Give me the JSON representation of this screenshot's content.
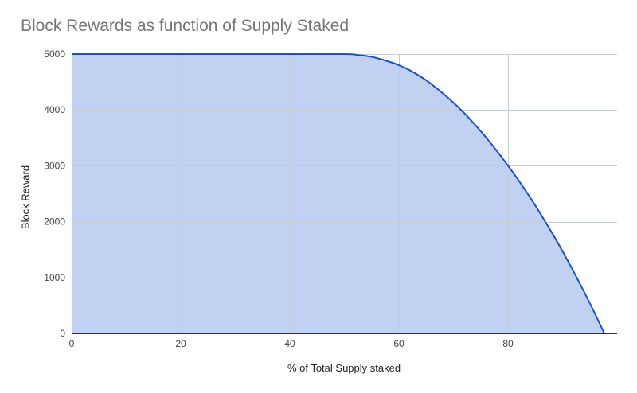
{
  "chart_data": {
    "type": "area",
    "title": "Block Rewards as function of Supply Staked",
    "xlabel": "% of Total Supply staked",
    "ylabel": "Block Reward",
    "xlim": [
      0,
      100
    ],
    "ylim": [
      0,
      5000
    ],
    "x_ticks": [
      "0",
      "20",
      "40",
      "60",
      "80"
    ],
    "y_ticks": [
      "0",
      "1000",
      "2000",
      "3000",
      "4000",
      "5000"
    ],
    "grid": true,
    "legend": "none",
    "series": [
      {
        "x": [
          0,
          10,
          20,
          30,
          40,
          50,
          52,
          55,
          58,
          60,
          62,
          65,
          68,
          70,
          72,
          75,
          78,
          80,
          82,
          85,
          88,
          90,
          92,
          95,
          98,
          100
        ],
        "values": [
          5000,
          5000,
          5000,
          5000,
          5000,
          5000,
          4990,
          4950,
          4870,
          4800,
          4710,
          4530,
          4300,
          4130,
          3940,
          3620,
          3260,
          3000,
          2730,
          2290,
          1810,
          1470,
          1110,
          540,
          -70,
          -490
        ]
      }
    ],
    "colors": {
      "line": "#1a4fd1",
      "fill": "#c1d1f2",
      "grid": "#c5cad6",
      "axis": "#333333"
    }
  }
}
